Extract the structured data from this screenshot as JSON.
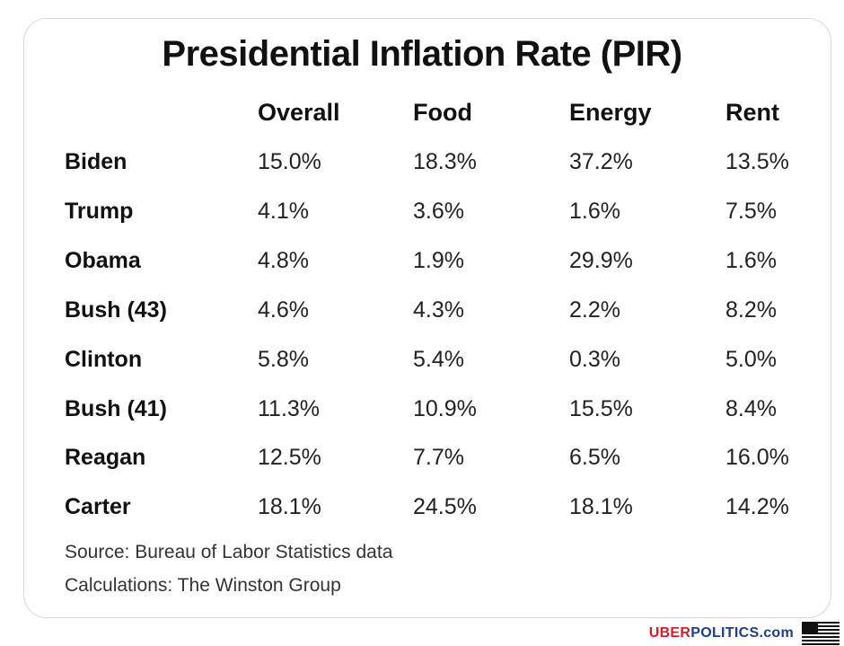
{
  "chart_data": {
    "type": "table",
    "title": "Presidential Inflation Rate (PIR)",
    "columns": [
      "Overall",
      "Food",
      "Energy",
      "Rent"
    ],
    "rows": [
      {
        "label": "Biden",
        "values": [
          "15.0%",
          "18.3%",
          "37.2%",
          "13.5%"
        ]
      },
      {
        "label": "Trump",
        "values": [
          "4.1%",
          "3.6%",
          "1.6%",
          "7.5%"
        ]
      },
      {
        "label": "Obama",
        "values": [
          "4.8%",
          "1.9%",
          "29.9%",
          "1.6%"
        ]
      },
      {
        "label": "Bush  (43)",
        "values": [
          "4.6%",
          "4.3%",
          "2.2%",
          "8.2%"
        ]
      },
      {
        "label": "Clinton",
        "values": [
          "5.8%",
          "5.4%",
          "0.3%",
          "5.0%"
        ]
      },
      {
        "label": "Bush (41)",
        "values": [
          "11.3%",
          "10.9%",
          "15.5%",
          "8.4%"
        ]
      },
      {
        "label": "Reagan",
        "values": [
          "12.5%",
          "7.7%",
          "6.5%",
          "16.0%"
        ]
      },
      {
        "label": "Carter",
        "values": [
          "18.1%",
          "24.5%",
          "18.1%",
          "14.2%"
        ]
      }
    ],
    "source": "Source: Bureau of Labor Statistics data",
    "calculations": "Calculations: The Winston Group"
  },
  "branding": {
    "uber": "UBER",
    "politics": "POLITICS.com",
    "flag_icon": "us-flag-icon"
  }
}
